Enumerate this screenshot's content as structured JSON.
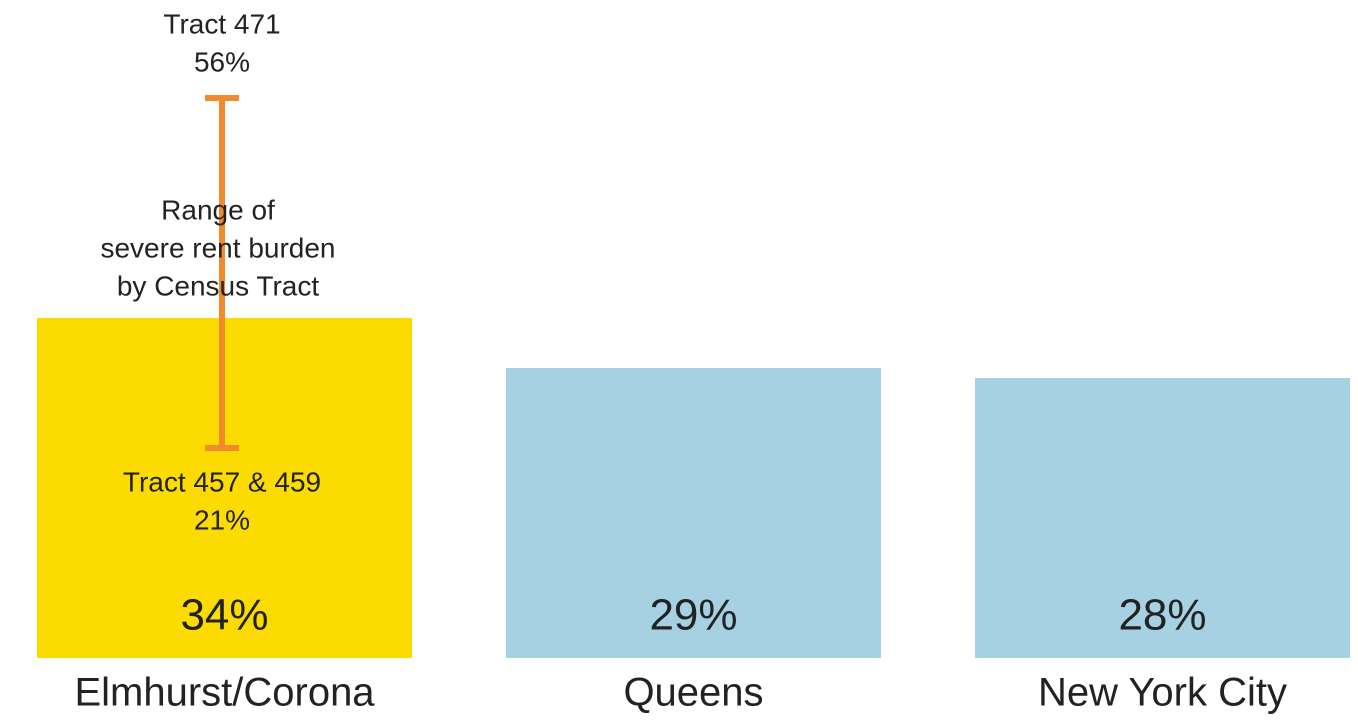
{
  "chart_data": {
    "type": "bar",
    "categories": [
      "Elmhurst/Corona",
      "Queens",
      "New York City"
    ],
    "values": [
      34,
      29,
      28
    ],
    "value_labels": [
      "34%",
      "29%",
      "28%"
    ],
    "colors": [
      "#fcdc00",
      "#a6d1e3",
      "#a6d1e3"
    ],
    "range": {
      "high": {
        "name": "Tract 471",
        "value": 56,
        "label": "56%"
      },
      "low": {
        "name": "Tract 457 & 459",
        "value": 21,
        "label": "21%"
      },
      "text": [
        "Range of",
        "severe rent burden",
        "by Census Tract"
      ],
      "color": "#f08a2c"
    }
  }
}
